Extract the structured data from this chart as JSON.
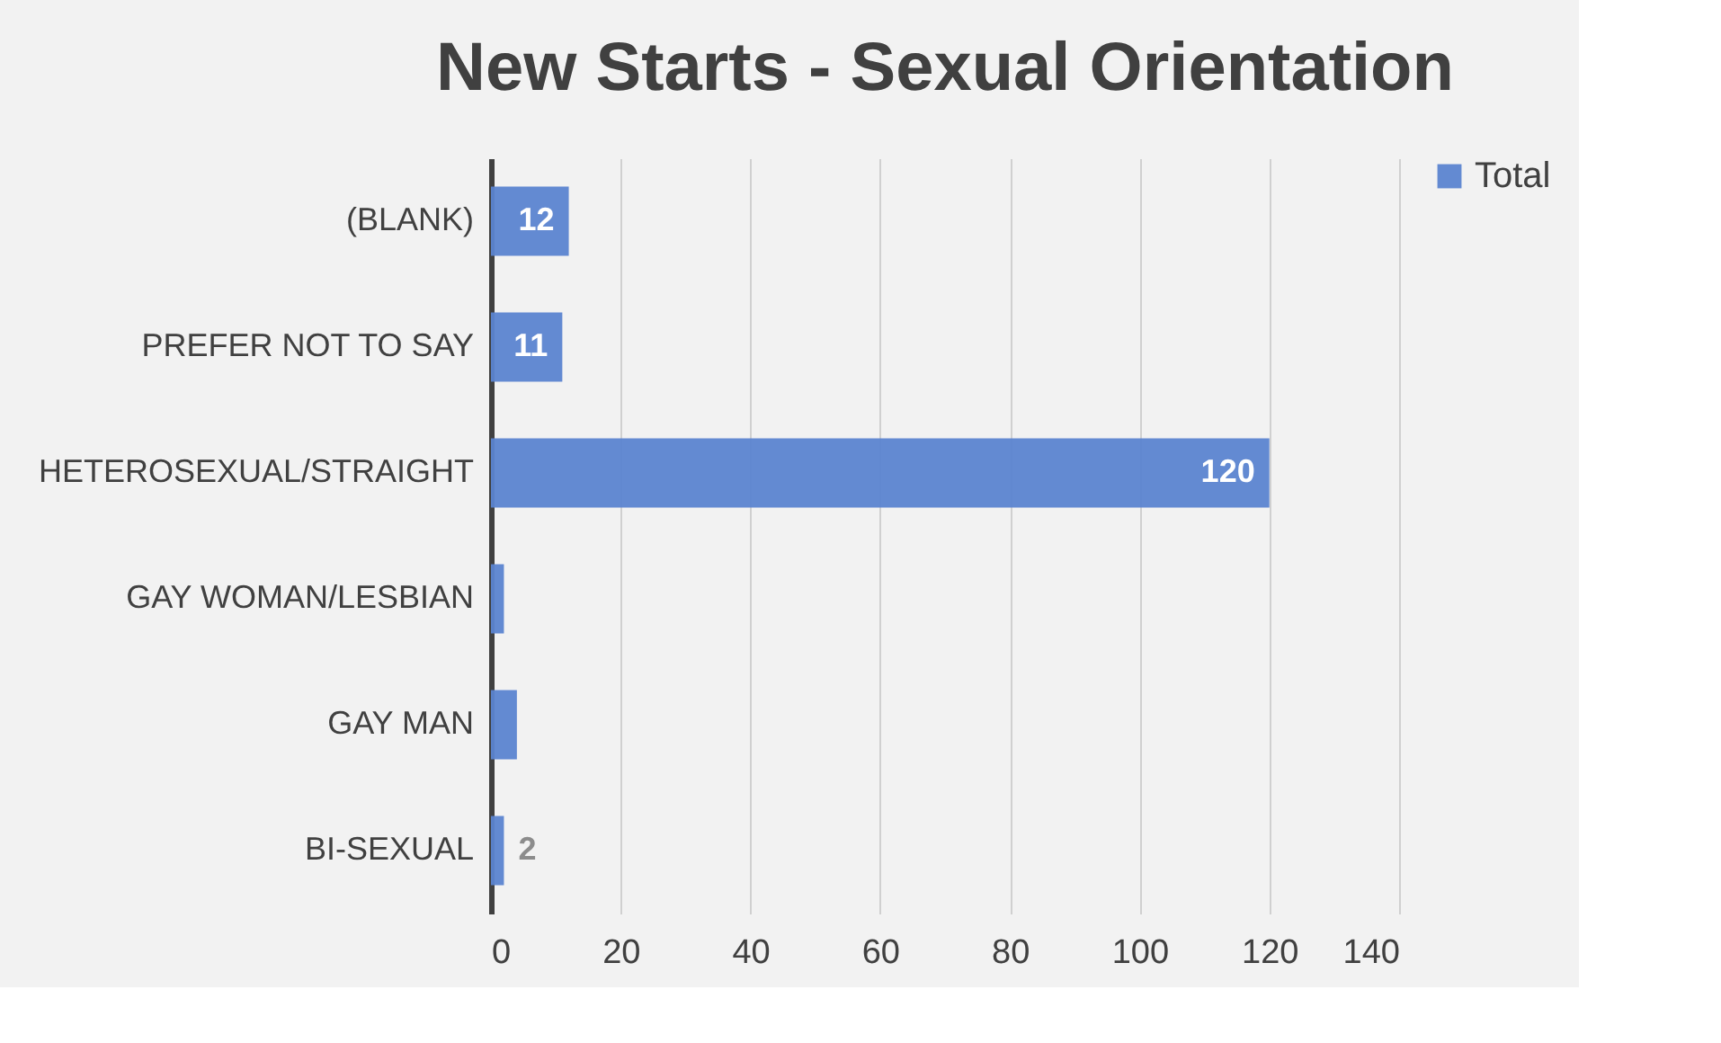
{
  "chart_data": {
    "type": "bar",
    "orientation": "horizontal",
    "title": "New Starts - Sexual Orientation",
    "categories": [
      "(BLANK)",
      "PREFER NOT TO SAY",
      "HETEROSEXUAL/STRAIGHT",
      "GAY WOMAN/LESBIAN",
      "GAY MAN",
      "BI-SEXUAL"
    ],
    "series": [
      {
        "name": "Total",
        "color": "#5b84d0",
        "values": [
          12,
          11,
          120,
          2,
          4,
          2
        ],
        "value_labels": [
          "12",
          "11",
          "120",
          null,
          null,
          "2"
        ]
      }
    ],
    "xlim": [
      0,
      140
    ],
    "xticks": [
      0,
      20,
      40,
      60,
      80,
      100,
      120,
      140
    ],
    "grid": "x",
    "legend": "right"
  }
}
